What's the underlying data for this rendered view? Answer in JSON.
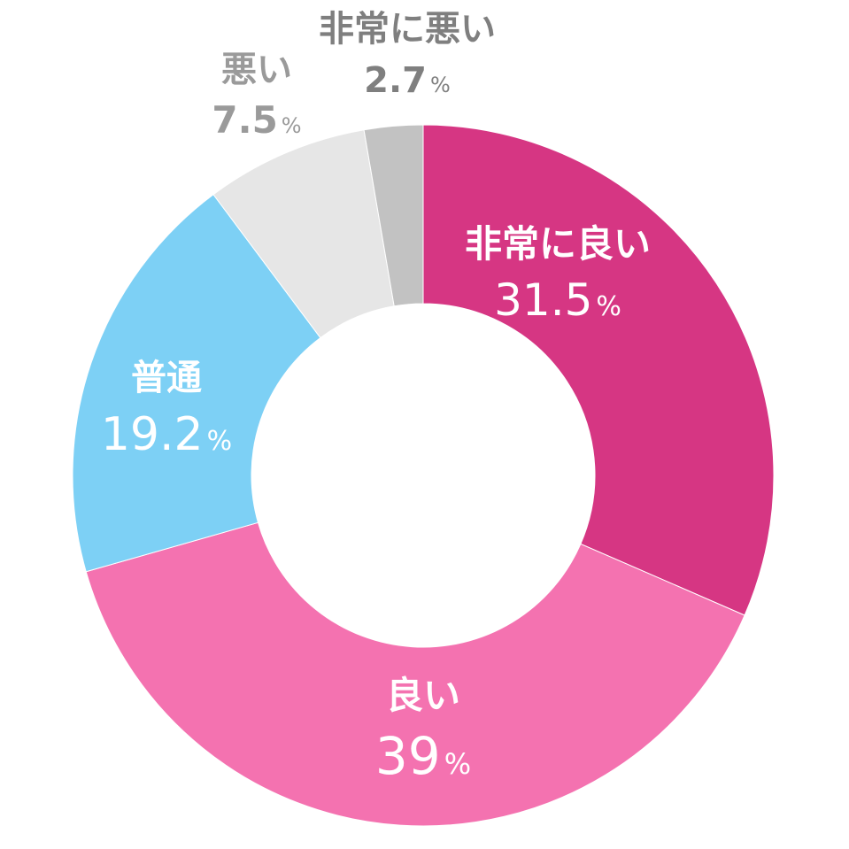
{
  "chart_data": {
    "type": "pie",
    "variant": "donut",
    "unit": "%",
    "slices": [
      {
        "label": "非常に良い",
        "value": 31.5,
        "value_text": "31.5",
        "color": "#d63683",
        "text_color": "#ffffff"
      },
      {
        "label": "良い",
        "value": 39,
        "value_text": "39",
        "color": "#f472b0",
        "text_color": "#ffffff"
      },
      {
        "label": "普通",
        "value": 19.2,
        "value_text": "19.2",
        "color": "#7dd0f5",
        "text_color": "#ffffff"
      },
      {
        "label": "悪い",
        "value": 7.5,
        "value_text": "7.5",
        "color": "#e6e6e6",
        "text_color": "#9a9a9a"
      },
      {
        "label": "非常に悪い",
        "value": 2.7,
        "value_text": "2.7",
        "color": "#c2c2c2",
        "text_color": "#7f7f7f"
      }
    ]
  }
}
